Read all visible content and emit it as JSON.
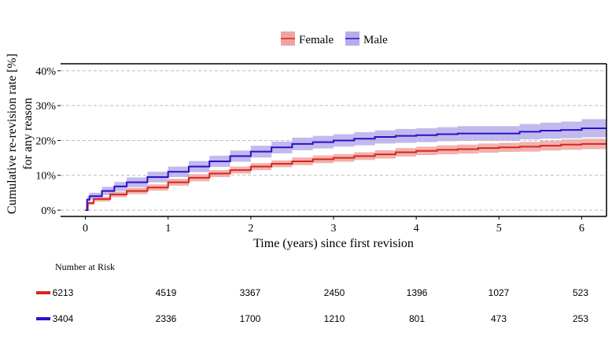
{
  "chart_data": {
    "type": "line",
    "subtype": "step",
    "xlabel": "Time (years) since first revision",
    "ylabel": "Cumulative re-revision rate [%]",
    "ylabel2": "for any reason",
    "xlim": [
      -0.3,
      6.3
    ],
    "ylim": [
      -1.8,
      42
    ],
    "xticks": [
      0,
      1,
      2,
      3,
      4,
      5,
      6
    ],
    "xtick_labels": [
      "0",
      "1",
      "2",
      "3",
      "4",
      "5",
      "6"
    ],
    "yticks": [
      0,
      10,
      20,
      30,
      40
    ],
    "ytick_labels": [
      "0%",
      "10%",
      "20%",
      "30%",
      "40%"
    ],
    "grid": "horizontal dashed",
    "legend_position": "top",
    "series": [
      {
        "name": "Female",
        "color": "#d7261e",
        "band_color": "#eea59f",
        "x": [
          0,
          0.03,
          0.1,
          0.3,
          0.5,
          0.75,
          1,
          1.25,
          1.5,
          1.75,
          2,
          2.25,
          2.5,
          2.75,
          3,
          3.25,
          3.5,
          3.75,
          4,
          4.25,
          4.5,
          4.75,
          5,
          5.25,
          5.5,
          5.75,
          6,
          6.3
        ],
        "y": [
          0,
          2,
          3.2,
          4.5,
          5.5,
          6.5,
          8,
          9.3,
          10.5,
          11.5,
          12.5,
          13.3,
          14,
          14.6,
          15,
          15.5,
          16,
          16.6,
          17,
          17.3,
          17.5,
          17.8,
          18,
          18.2,
          18.5,
          18.8,
          19,
          19
        ],
        "ci_halfwidth": [
          0,
          0.5,
          0.7,
          0.8,
          0.9,
          0.9,
          1,
          1,
          1,
          1,
          1,
          1,
          1.1,
          1.1,
          1.1,
          1.1,
          1.2,
          1.2,
          1.2,
          1.3,
          1.3,
          1.3,
          1.3,
          1.4,
          1.4,
          1.5,
          1.5,
          1.5
        ]
      },
      {
        "name": "Male",
        "color": "#2b10c9",
        "band_color": "#b6aeea",
        "x": [
          0,
          0.02,
          0.05,
          0.2,
          0.35,
          0.5,
          0.75,
          1,
          1.25,
          1.5,
          1.75,
          2,
          2.25,
          2.5,
          2.75,
          3,
          3.25,
          3.5,
          3.75,
          4,
          4.25,
          4.5,
          4.75,
          5,
          5.25,
          5.5,
          5.75,
          6,
          6.3
        ],
        "y": [
          0,
          3,
          4,
          5.5,
          6.8,
          8,
          9.5,
          11,
          12.5,
          14,
          15.5,
          16.8,
          18,
          19,
          19.5,
          20,
          20.5,
          21,
          21.3,
          21.5,
          21.8,
          22,
          22,
          22,
          22.5,
          22.8,
          23,
          23.5,
          23.5
        ],
        "ci_halfwidth": [
          0,
          0.8,
          1,
          1.2,
          1.3,
          1.4,
          1.5,
          1.5,
          1.6,
          1.6,
          1.6,
          1.7,
          1.7,
          1.8,
          1.8,
          1.8,
          1.9,
          1.9,
          2,
          2,
          2,
          2.1,
          2.1,
          2.1,
          2.2,
          2.3,
          2.4,
          2.6,
          2.6
        ]
      }
    ]
  },
  "risk_table": {
    "title": "Number at Risk",
    "rows": [
      {
        "color": "#d7261e",
        "values": [
          "6213",
          "4519",
          "3367",
          "2450",
          "1396",
          "1027",
          "523"
        ]
      },
      {
        "color": "#2b10c9",
        "values": [
          "3404",
          "2336",
          "1700",
          "1210",
          "801",
          "473",
          "253"
        ]
      }
    ]
  }
}
